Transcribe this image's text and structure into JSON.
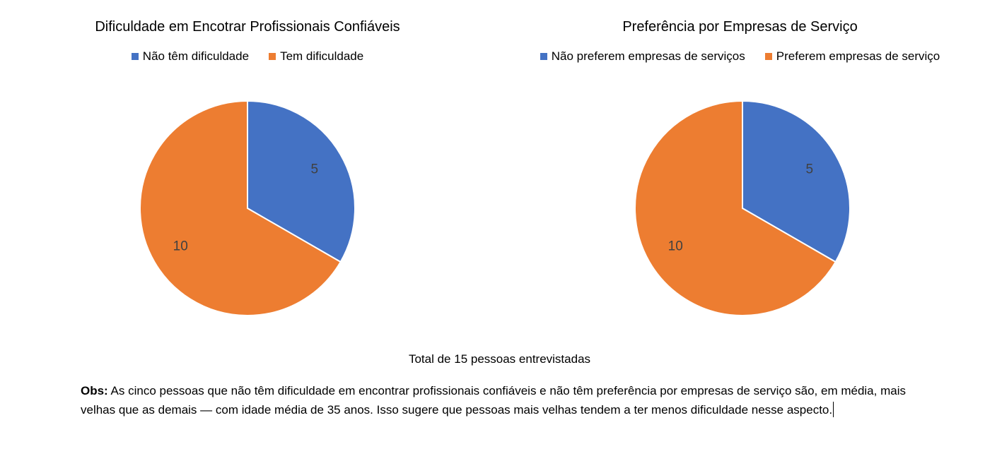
{
  "colors": {
    "blue": "#4472C4",
    "orange": "#ED7D31"
  },
  "chart_data": [
    {
      "type": "pie",
      "title": "Dificuldade em Encotrar Profissionais Confiáveis",
      "legend_position": "top",
      "categories": [
        "Não têm dificuldade",
        "Tem dificuldade"
      ],
      "values": [
        5,
        10
      ],
      "colors": [
        "#4472C4",
        "#ED7D31"
      ],
      "data_labels": [
        "5",
        "10"
      ]
    },
    {
      "type": "pie",
      "title": "Preferência por Empresas de Serviço",
      "legend_position": "top",
      "categories": [
        "Não preferem empresas de serviços",
        "Preferem empresas de serviço"
      ],
      "values": [
        5,
        10
      ],
      "colors": [
        "#4472C4",
        "#ED7D31"
      ],
      "data_labels": [
        "5",
        "10"
      ]
    }
  ],
  "total_text": "Total de 15 pessoas entrevistadas",
  "obs": {
    "label": "Obs:",
    "text": " As cinco pessoas que não têm dificuldade em encontrar profissionais confiáveis e não têm preferência por empresas de serviço são, em média, mais velhas que as demais — com idade média de 35 anos. Isso sugere que pessoas mais velhas tendem a ter menos dificuldade nesse aspecto."
  }
}
